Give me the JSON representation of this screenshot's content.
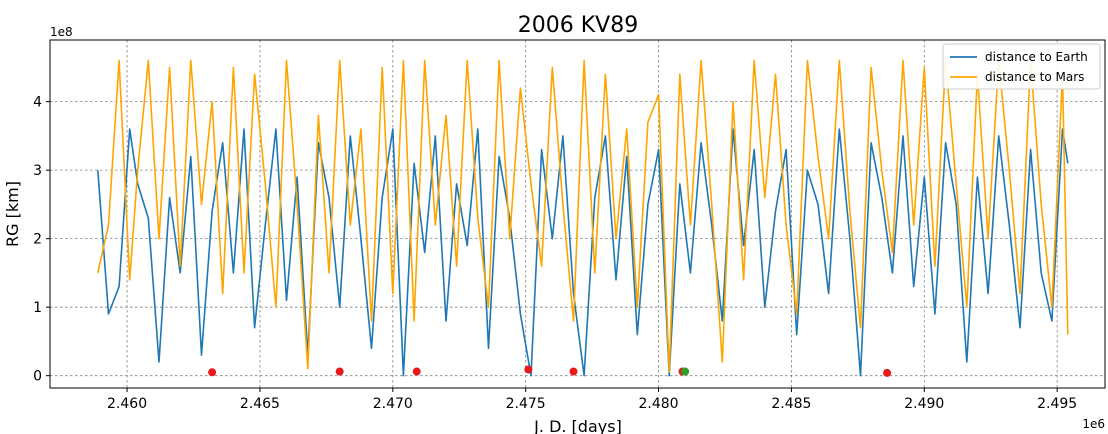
{
  "chart_data": {
    "type": "line",
    "title": "2006 KV89",
    "xlabel": "J. D. [days]",
    "ylabel": "RG [km]",
    "x_offset_label": "1e6",
    "y_offset_label": "1e8",
    "xlim": [
      2.4571,
      2.4968
    ],
    "ylim": [
      -0.18,
      4.9
    ],
    "x_ticks": [
      2.46,
      2.465,
      2.47,
      2.475,
      2.48,
      2.485,
      2.49,
      2.495
    ],
    "x_tick_labels": [
      "2.460",
      "2.465",
      "2.470",
      "2.475",
      "2.480",
      "2.485",
      "2.490",
      "2.495"
    ],
    "y_ticks": [
      0,
      1,
      2,
      3,
      4
    ],
    "y_tick_labels": [
      "0",
      "1",
      "2",
      "3",
      "4"
    ],
    "grid": true,
    "legend_position": "upper right",
    "series": [
      {
        "name": "distance to Earth",
        "color": "#1f77b4",
        "x": [
          2.4589,
          2.4593,
          2.4597,
          2.4601,
          2.4604,
          2.4608,
          2.4612,
          2.4616,
          2.462,
          2.4624,
          2.4628,
          2.4632,
          2.4636,
          2.464,
          2.4644,
          2.4648,
          2.4652,
          2.4656,
          2.466,
          2.4664,
          2.4668,
          2.4672,
          2.4676,
          2.468,
          2.4684,
          2.4688,
          2.4692,
          2.4696,
          2.47,
          2.4704,
          2.4708,
          2.4712,
          2.4716,
          2.472,
          2.4724,
          2.4728,
          2.4732,
          2.4736,
          2.474,
          2.4744,
          2.4748,
          2.4752,
          2.4756,
          2.476,
          2.4764,
          2.4768,
          2.4772,
          2.4776,
          2.478,
          2.4784,
          2.4788,
          2.4792,
          2.4796,
          2.48,
          2.4804,
          2.4808,
          2.4812,
          2.4816,
          2.482,
          2.4824,
          2.4828,
          2.4832,
          2.4836,
          2.484,
          2.4844,
          2.4848,
          2.4852,
          2.4856,
          2.486,
          2.4864,
          2.4868,
          2.4872,
          2.4876,
          2.488,
          2.4884,
          2.4888,
          2.4892,
          2.4896,
          2.49,
          2.4904,
          2.4908,
          2.4912,
          2.4916,
          2.492,
          2.4924,
          2.4928,
          2.4932,
          2.4936,
          2.494,
          2.4944,
          2.4948,
          2.4952,
          2.4954
        ],
        "y": [
          3.0,
          0.9,
          1.3,
          3.6,
          2.8,
          2.3,
          0.2,
          2.6,
          1.5,
          3.2,
          0.3,
          2.4,
          3.4,
          1.5,
          3.6,
          0.7,
          2.2,
          3.6,
          1.1,
          2.9,
          0.3,
          3.4,
          2.6,
          1.0,
          3.5,
          2.0,
          0.4,
          2.6,
          3.6,
          0.0,
          3.1,
          1.8,
          3.5,
          0.8,
          2.8,
          1.9,
          3.6,
          0.4,
          3.2,
          2.3,
          0.9,
          0.0,
          3.3,
          2.0,
          3.5,
          1.2,
          0.0,
          2.6,
          3.5,
          1.4,
          3.2,
          0.6,
          2.5,
          3.3,
          0.0,
          2.8,
          1.5,
          3.4,
          2.2,
          0.8,
          3.6,
          1.9,
          3.3,
          1.0,
          2.4,
          3.3,
          0.6,
          3.0,
          2.5,
          1.2,
          3.6,
          2.0,
          0.0,
          3.4,
          2.6,
          1.5,
          3.5,
          1.3,
          2.9,
          0.9,
          3.4,
          2.5,
          0.2,
          2.9,
          1.2,
          3.5,
          2.2,
          0.7,
          3.3,
          1.5,
          0.8,
          3.6,
          3.1
        ]
      },
      {
        "name": "distance to Mars",
        "color": "#ffa500",
        "x": [
          2.4589,
          2.4593,
          2.4597,
          2.4601,
          2.4604,
          2.4608,
          2.4612,
          2.4616,
          2.462,
          2.4624,
          2.4628,
          2.4632,
          2.4636,
          2.464,
          2.4644,
          2.4648,
          2.4652,
          2.4656,
          2.466,
          2.4664,
          2.4668,
          2.4672,
          2.4676,
          2.468,
          2.4684,
          2.4688,
          2.4692,
          2.4696,
          2.47,
          2.4704,
          2.4708,
          2.4712,
          2.4716,
          2.472,
          2.4724,
          2.4728,
          2.4732,
          2.4736,
          2.474,
          2.4744,
          2.4748,
          2.4752,
          2.4756,
          2.476,
          2.4764,
          2.4768,
          2.4772,
          2.4776,
          2.478,
          2.4784,
          2.4788,
          2.4792,
          2.4796,
          2.48,
          2.4804,
          2.4808,
          2.4812,
          2.4816,
          2.482,
          2.4824,
          2.4828,
          2.4832,
          2.4836,
          2.484,
          2.4844,
          2.4848,
          2.4852,
          2.4856,
          2.486,
          2.4864,
          2.4868,
          2.4872,
          2.4876,
          2.488,
          2.4884,
          2.4888,
          2.4892,
          2.4896,
          2.49,
          2.4904,
          2.4908,
          2.4912,
          2.4916,
          2.492,
          2.4924,
          2.4928,
          2.4932,
          2.4936,
          2.494,
          2.4944,
          2.4948,
          2.4952,
          2.4954
        ],
        "y": [
          1.5,
          2.2,
          4.6,
          1.4,
          3.0,
          4.6,
          2.0,
          4.5,
          1.6,
          4.6,
          2.5,
          4.0,
          1.2,
          4.5,
          1.5,
          4.4,
          2.8,
          1.0,
          4.6,
          2.5,
          0.1,
          3.8,
          1.5,
          4.6,
          2.2,
          3.6,
          0.8,
          4.5,
          1.2,
          4.6,
          0.8,
          4.6,
          2.2,
          3.8,
          1.6,
          4.6,
          2.3,
          1.0,
          4.6,
          2.0,
          4.2,
          2.8,
          1.6,
          4.5,
          2.5,
          0.8,
          4.6,
          1.5,
          4.4,
          2.0,
          3.6,
          1.0,
          3.7,
          4.1,
          0.05,
          4.4,
          2.2,
          4.6,
          2.5,
          0.2,
          4.0,
          1.4,
          4.6,
          2.6,
          4.4,
          2.2,
          0.9,
          4.6,
          3.2,
          2.0,
          4.6,
          2.4,
          0.7,
          4.5,
          3.0,
          1.8,
          4.6,
          2.2,
          4.5,
          1.6,
          4.6,
          2.8,
          1.0,
          4.4,
          2.0,
          4.6,
          3.0,
          1.2,
          4.6,
          2.5,
          1.0,
          4.4,
          0.6
        ]
      }
    ],
    "markers": [
      {
        "x": 2.4632,
        "y": 0.05,
        "color": "#e8191b"
      },
      {
        "x": 2.468,
        "y": 0.06,
        "color": "#e8191b"
      },
      {
        "x": 2.4709,
        "y": 0.06,
        "color": "#e8191b"
      },
      {
        "x": 2.4751,
        "y": 0.09,
        "color": "#e8191b"
      },
      {
        "x": 2.4768,
        "y": 0.06,
        "color": "#e8191b"
      },
      {
        "x": 2.4809,
        "y": 0.06,
        "color": "#e8191b"
      },
      {
        "x": 2.481,
        "y": 0.06,
        "color": "#2ca02c"
      },
      {
        "x": 2.4886,
        "y": 0.04,
        "color": "#e8191b"
      }
    ]
  }
}
